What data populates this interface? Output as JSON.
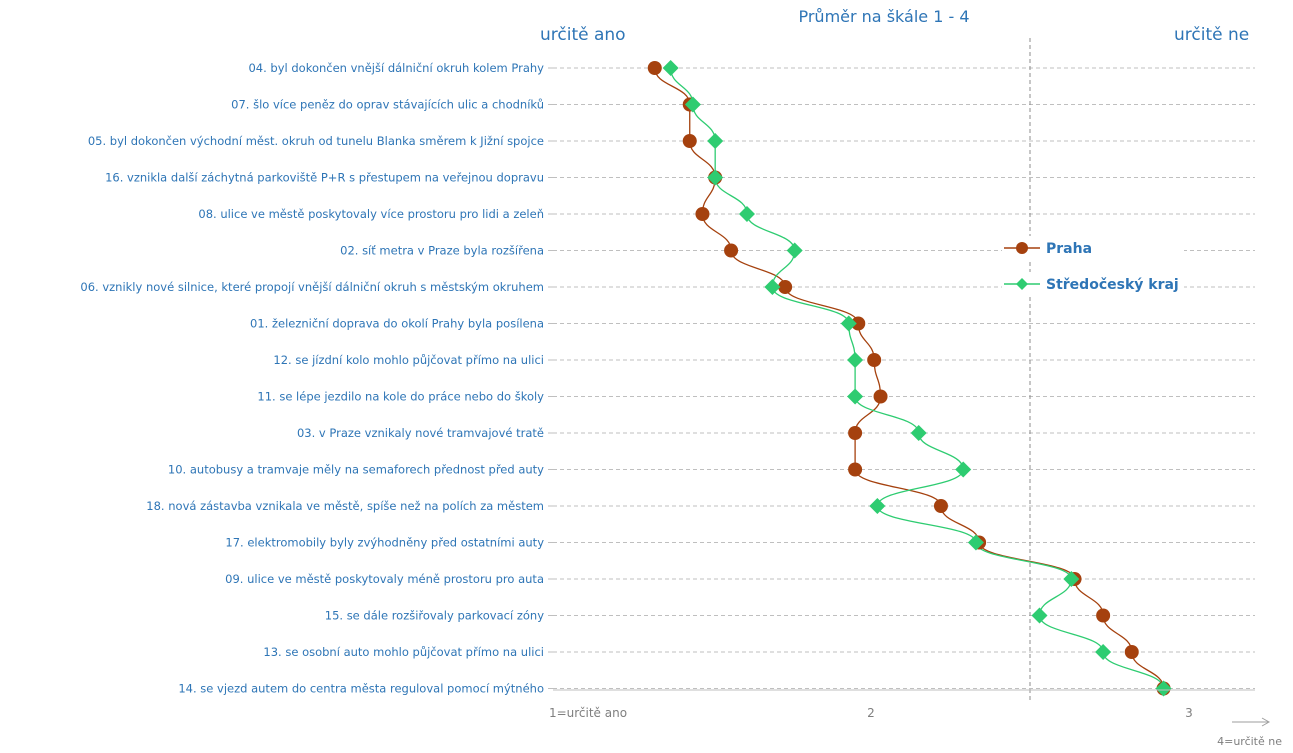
{
  "chart_data": {
    "type": "line",
    "title": "Průměr na škále 1 - 4",
    "left_label": "určitě ano",
    "right_label": "určitě ne",
    "x_axis_note": "4=určitě ne",
    "xlim": [
      1,
      3.2
    ],
    "x_ticks": [
      {
        "value": 1,
        "label": "1=určitě ano"
      },
      {
        "value": 2,
        "label": "2"
      },
      {
        "value": 3,
        "label": "3"
      }
    ],
    "reference_line": 2.5,
    "grid": "horizontal-dashed",
    "legend_position": "right",
    "categories": [
      "04. byl dokončen  vnější dálniční okruh kolem  Prahy",
      "07. šlo více peněz do oprav stávajících ulic a chodníků",
      "05. byl dokončen  východní  měst. okruh od tunelu Blanka směrem  k Jižní spojce",
      "16. vznikla další záchytná parkoviště  P+R s přestupem  na veřejnou dopravu",
      "08. ulice ve městě poskytovaly  více prostoru pro lidi a zeleň",
      "02. síť metra v Praze byla rozšířena",
      "06. vznikly nové silnice,  které propojí  vnější dálniční okruh s městským  okruhem",
      "01. železniční doprava do okolí Prahy byla posílena",
      "12. se jízdní kolo mohlo  půjčovat přímo na ulici",
      "11. se lépe jezdilo na kole do práce nebo do školy",
      "03. v Praze vznikaly nové tramvajové tratě",
      "10. autobusy a tramvaje měly na semaforech přednost  před auty",
      "18. nová zástavba vznikala ve městě,  spíše než na polích  za městem",
      "17. elektromobily  byly zvýhodněny  před ostatními auty",
      "09. ulice ve městě poskytovaly  méně prostoru pro auta",
      "15. se dále rozšiřovaly  parkovací zóny",
      "13. se osobní  auto mohlo půjčovat přímo na ulici",
      "14. se vjezd autem do centra města reguloval pomocí  mýtného"
    ],
    "series": [
      {
        "name": "Praha",
        "color": "#a5410e",
        "marker": "circle",
        "values": [
          1.32,
          1.43,
          1.43,
          1.51,
          1.47,
          1.56,
          1.73,
          1.96,
          2.01,
          2.03,
          1.95,
          1.95,
          2.22,
          2.34,
          2.64,
          2.73,
          2.82,
          2.92
        ]
      },
      {
        "name": "Středočeský kraj",
        "color": "#2ecc71",
        "marker": "diamond",
        "values": [
          1.37,
          1.44,
          1.51,
          1.51,
          1.61,
          1.76,
          1.69,
          1.93,
          1.95,
          1.95,
          2.15,
          2.29,
          2.02,
          2.33,
          2.63,
          2.53,
          2.73,
          2.92
        ]
      }
    ]
  }
}
